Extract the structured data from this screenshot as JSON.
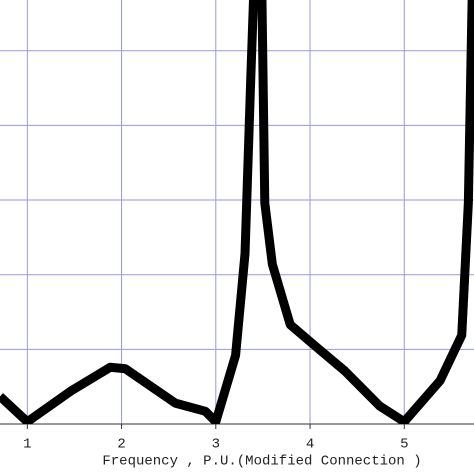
{
  "chart_data": {
    "type": "line",
    "x_label": "Frequency , P.U.(Modified Connection )",
    "x": [
      0.71,
      1.0,
      1.46,
      1.88,
      2.04,
      2.57,
      2.89,
      3.0,
      3.21,
      3.31,
      3.37,
      3.4,
      3.49,
      3.52,
      3.6,
      3.79,
      4.05,
      4.37,
      4.74,
      5.0,
      5.38,
      5.61,
      5.68,
      5.72
    ],
    "series": [
      {
        "color": "#000000",
        "values": [
          0.37,
          0.03,
          0.44,
          0.76,
          0.74,
          0.28,
          0.17,
          0.03,
          0.92,
          2.28,
          4.59,
          5.68,
          5.68,
          2.96,
          2.14,
          1.33,
          1.05,
          0.71,
          0.24,
          0.03,
          0.58,
          1.19,
          2.96,
          5.68
        ]
      }
    ],
    "xlim": [
      0.71,
      5.74
    ],
    "ylim": [
      0,
      5.68
    ],
    "xticks": [
      1,
      2,
      3,
      4,
      5
    ],
    "yticks": [
      1,
      2,
      3,
      4,
      5
    ],
    "grid": true
  }
}
